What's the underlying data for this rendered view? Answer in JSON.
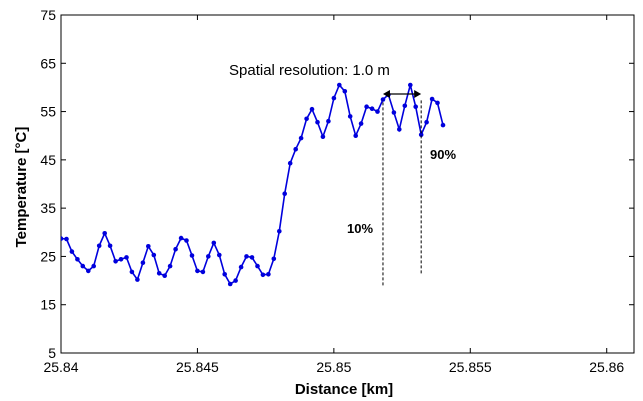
{
  "chart_data": {
    "type": "line",
    "title": "",
    "xlabel": "Distance [km]",
    "ylabel": "Temperature [°C]",
    "xlim": [
      25.84,
      25.861
    ],
    "ylim": [
      5,
      75
    ],
    "x_ticks": [
      25.84,
      25.845,
      25.85,
      25.855,
      25.86
    ],
    "x_tick_labels": [
      "25.84",
      "25.845",
      "25.85",
      "25.855",
      "25.86"
    ],
    "y_ticks": [
      5,
      15,
      25,
      35,
      45,
      55,
      65,
      75
    ],
    "y_tick_labels": [
      "5",
      "15",
      "25",
      "35",
      "45",
      "55",
      "65",
      "75"
    ],
    "grid": false,
    "legend": "none",
    "series": [
      {
        "color": "#0000dd",
        "marker": "dot",
        "points": [
          [
            25.84,
            28.7
          ],
          [
            25.8402,
            28.6
          ],
          [
            25.8404,
            26.0
          ],
          [
            25.8406,
            24.4
          ],
          [
            25.8408,
            23.0
          ],
          [
            25.841,
            22.0
          ],
          [
            25.8412,
            23.0
          ],
          [
            25.8414,
            27.2
          ],
          [
            25.8416,
            29.8
          ],
          [
            25.8418,
            27.2
          ],
          [
            25.842,
            24.0
          ],
          [
            25.8422,
            24.4
          ],
          [
            25.8424,
            24.8
          ],
          [
            25.8426,
            21.8
          ],
          [
            25.8428,
            20.2
          ],
          [
            25.843,
            23.7
          ],
          [
            25.8432,
            27.1
          ],
          [
            25.8434,
            25.3
          ],
          [
            25.8436,
            21.5
          ],
          [
            25.8438,
            21.0
          ],
          [
            25.844,
            23.0
          ],
          [
            25.8442,
            26.5
          ],
          [
            25.8444,
            28.8
          ],
          [
            25.8446,
            28.3
          ],
          [
            25.8448,
            25.2
          ],
          [
            25.845,
            22.0
          ],
          [
            25.8452,
            21.8
          ],
          [
            25.8454,
            25.0
          ],
          [
            25.8456,
            27.8
          ],
          [
            25.8458,
            25.3
          ],
          [
            25.846,
            21.3
          ],
          [
            25.8462,
            19.3
          ],
          [
            25.8464,
            20.0
          ],
          [
            25.8466,
            22.8
          ],
          [
            25.8468,
            25.0
          ],
          [
            25.847,
            24.8
          ],
          [
            25.8472,
            23.0
          ],
          [
            25.8474,
            21.2
          ],
          [
            25.8476,
            21.3
          ],
          [
            25.8478,
            24.5
          ],
          [
            25.848,
            30.2
          ],
          [
            25.8482,
            38.0
          ],
          [
            25.8484,
            44.3
          ],
          [
            25.8486,
            47.2
          ],
          [
            25.8488,
            49.5
          ],
          [
            25.849,
            53.5
          ],
          [
            25.8492,
            55.5
          ],
          [
            25.8494,
            52.8
          ],
          [
            25.8496,
            49.8
          ],
          [
            25.8498,
            53.0
          ],
          [
            25.85,
            57.8
          ],
          [
            25.8502,
            60.5
          ],
          [
            25.8504,
            59.2
          ],
          [
            25.8506,
            54.0
          ],
          [
            25.8508,
            50.0
          ],
          [
            25.851,
            52.5
          ],
          [
            25.8512,
            56.0
          ],
          [
            25.8514,
            55.6
          ],
          [
            25.8516,
            55.0
          ],
          [
            25.8518,
            57.5
          ],
          [
            25.852,
            58.5
          ],
          [
            25.8522,
            54.8
          ],
          [
            25.8524,
            51.3
          ],
          [
            25.8526,
            56.2
          ],
          [
            25.8528,
            60.5
          ],
          [
            25.853,
            56.0
          ],
          [
            25.8532,
            50.2
          ],
          [
            25.8534,
            52.8
          ],
          [
            25.8536,
            57.6
          ],
          [
            25.8538,
            56.8
          ],
          [
            25.854,
            52.2
          ]
        ]
      }
    ],
    "annotations": {
      "resolution_label": "Spatial resolution: 1.0 m",
      "low_label": "10%",
      "high_label": "90%",
      "low_x": 25.8518,
      "high_x": 25.8532,
      "low_value": 28.0,
      "high_value": 49.0
    }
  }
}
